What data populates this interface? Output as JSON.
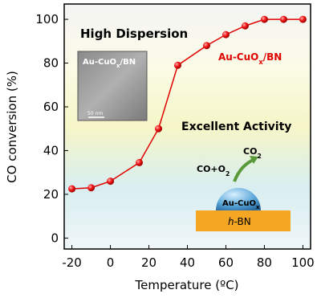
{
  "chart_data": {
    "type": "line",
    "x_label": "Temperature (ºC)",
    "y_label": "CO conversion (%)",
    "x": [
      -20,
      -10,
      0,
      15,
      25,
      35,
      50,
      60,
      70,
      80,
      90,
      100
    ],
    "series": [
      {
        "color": "#e00000",
        "values": [
          22.5,
          23,
          26,
          34.5,
          50,
          79,
          88,
          93,
          97,
          100,
          100,
          100
        ]
      }
    ],
    "xlim": [
      -24,
      104
    ],
    "ylim": [
      -5,
      107
    ],
    "xticks": [
      -20,
      0,
      20,
      40,
      60,
      80,
      100
    ],
    "yticks": [
      0,
      20,
      40,
      60,
      80,
      100
    ],
    "annotations": [
      {
        "segments": [
          {
            "text": "High Dispersion"
          }
        ]
      },
      {
        "segments": [
          {
            "text": "Au-CuO"
          },
          {
            "text": "x",
            "sub": true
          },
          {
            "text": "/BN"
          }
        ]
      },
      {
        "segments": [
          {
            "text": "50 nm"
          }
        ]
      },
      {
        "segments": [
          {
            "text": "Au-CuO"
          },
          {
            "text": "x",
            "sub": true
          },
          {
            "text": "/BN"
          }
        ]
      },
      {
        "segments": [
          {
            "text": "Excellent Activity"
          }
        ]
      },
      {
        "segments": [
          {
            "text": "CO"
          },
          {
            "text": "2",
            "sub": true
          }
        ]
      },
      {
        "segments": [
          {
            "text": "CO+O"
          },
          {
            "text": "2",
            "sub": true
          }
        ]
      },
      {
        "segments": [
          {
            "text": "Au-CuO"
          },
          {
            "text": "x",
            "sub": true
          }
        ]
      },
      {
        "segments": [
          {
            "text": "h",
            "italic": true
          },
          {
            "text": "-BN"
          }
        ]
      }
    ]
  }
}
